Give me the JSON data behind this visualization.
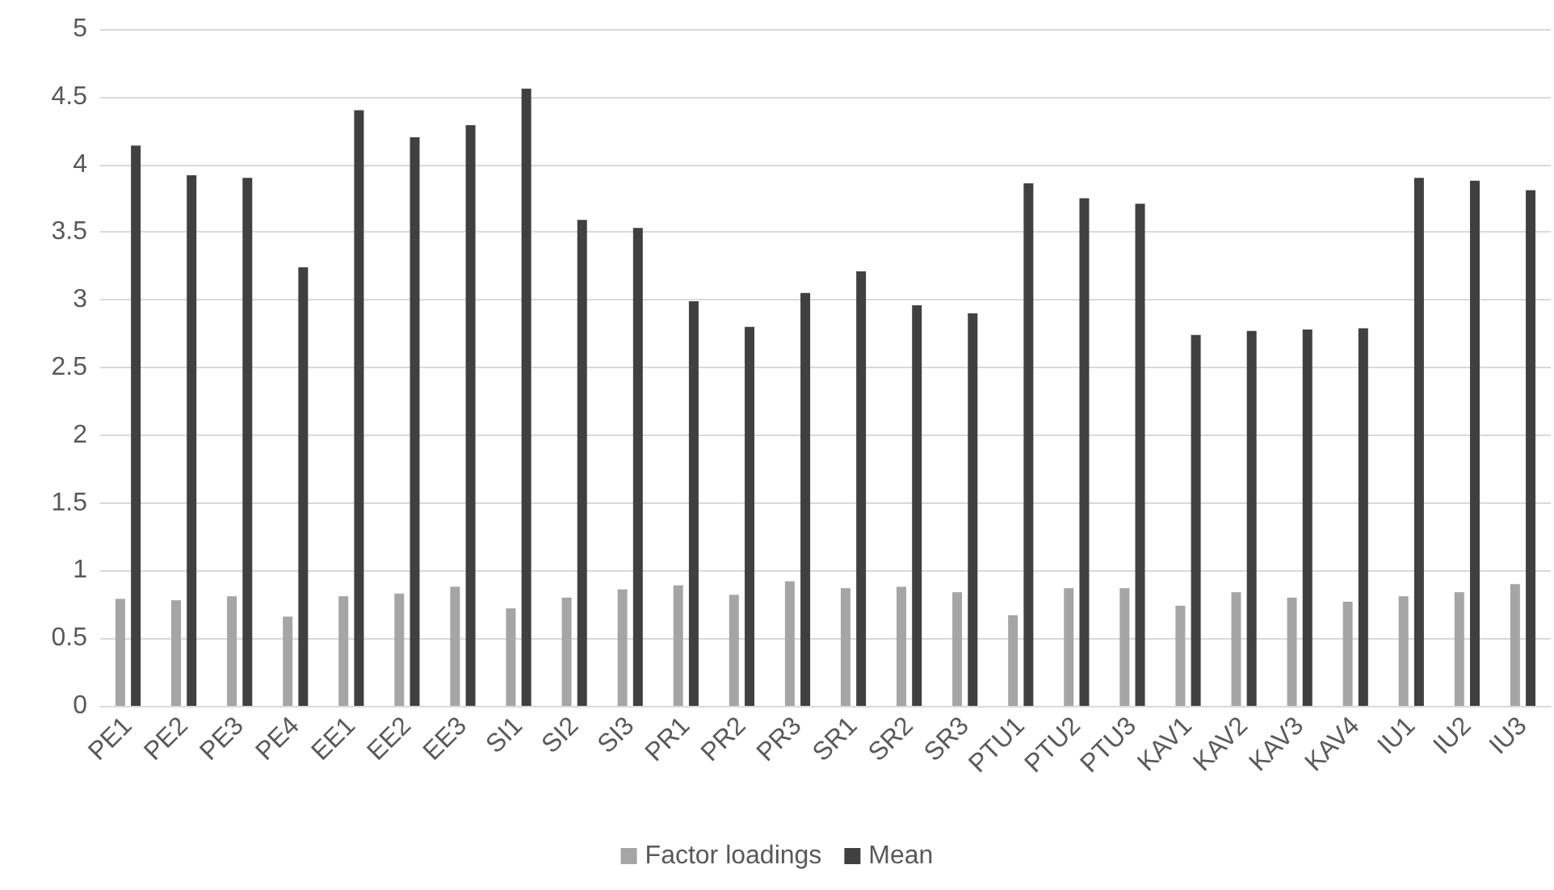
{
  "chart_data": {
    "type": "bar",
    "categories": [
      "PE1",
      "PE2",
      "PE3",
      "PE4",
      "EE1",
      "EE2",
      "EE3",
      "SI1",
      "SI2",
      "SI3",
      "PR1",
      "PR2",
      "PR3",
      "SR1",
      "SR2",
      "SR3",
      "PTU1",
      "PTU2",
      "PTU3",
      "KAV1",
      "KAV2",
      "KAV3",
      "KAV4",
      "IU1",
      "IU2",
      "IU3"
    ],
    "series": [
      {
        "name": "Factor loadings",
        "color": "#a5a5a5",
        "values": [
          0.79,
          0.78,
          0.81,
          0.66,
          0.81,
          0.83,
          0.88,
          0.72,
          0.8,
          0.86,
          0.89,
          0.82,
          0.92,
          0.87,
          0.88,
          0.84,
          0.67,
          0.87,
          0.87,
          0.74,
          0.84,
          0.8,
          0.77,
          0.81,
          0.84,
          0.9
        ]
      },
      {
        "name": "Mean",
        "color": "#404040",
        "values": [
          4.14,
          3.92,
          3.9,
          3.24,
          4.4,
          4.2,
          4.29,
          4.56,
          3.59,
          3.53,
          2.99,
          2.8,
          3.05,
          3.21,
          2.96,
          2.9,
          3.86,
          3.75,
          3.71,
          2.74,
          2.77,
          2.78,
          2.79,
          3.9,
          3.88,
          3.81
        ]
      }
    ],
    "ylim": [
      0,
      5
    ],
    "yticks": [
      0,
      0.5,
      1,
      1.5,
      2,
      2.5,
      3,
      3.5,
      4,
      4.5,
      5
    ],
    "grid": "y",
    "legend": "bottom"
  }
}
